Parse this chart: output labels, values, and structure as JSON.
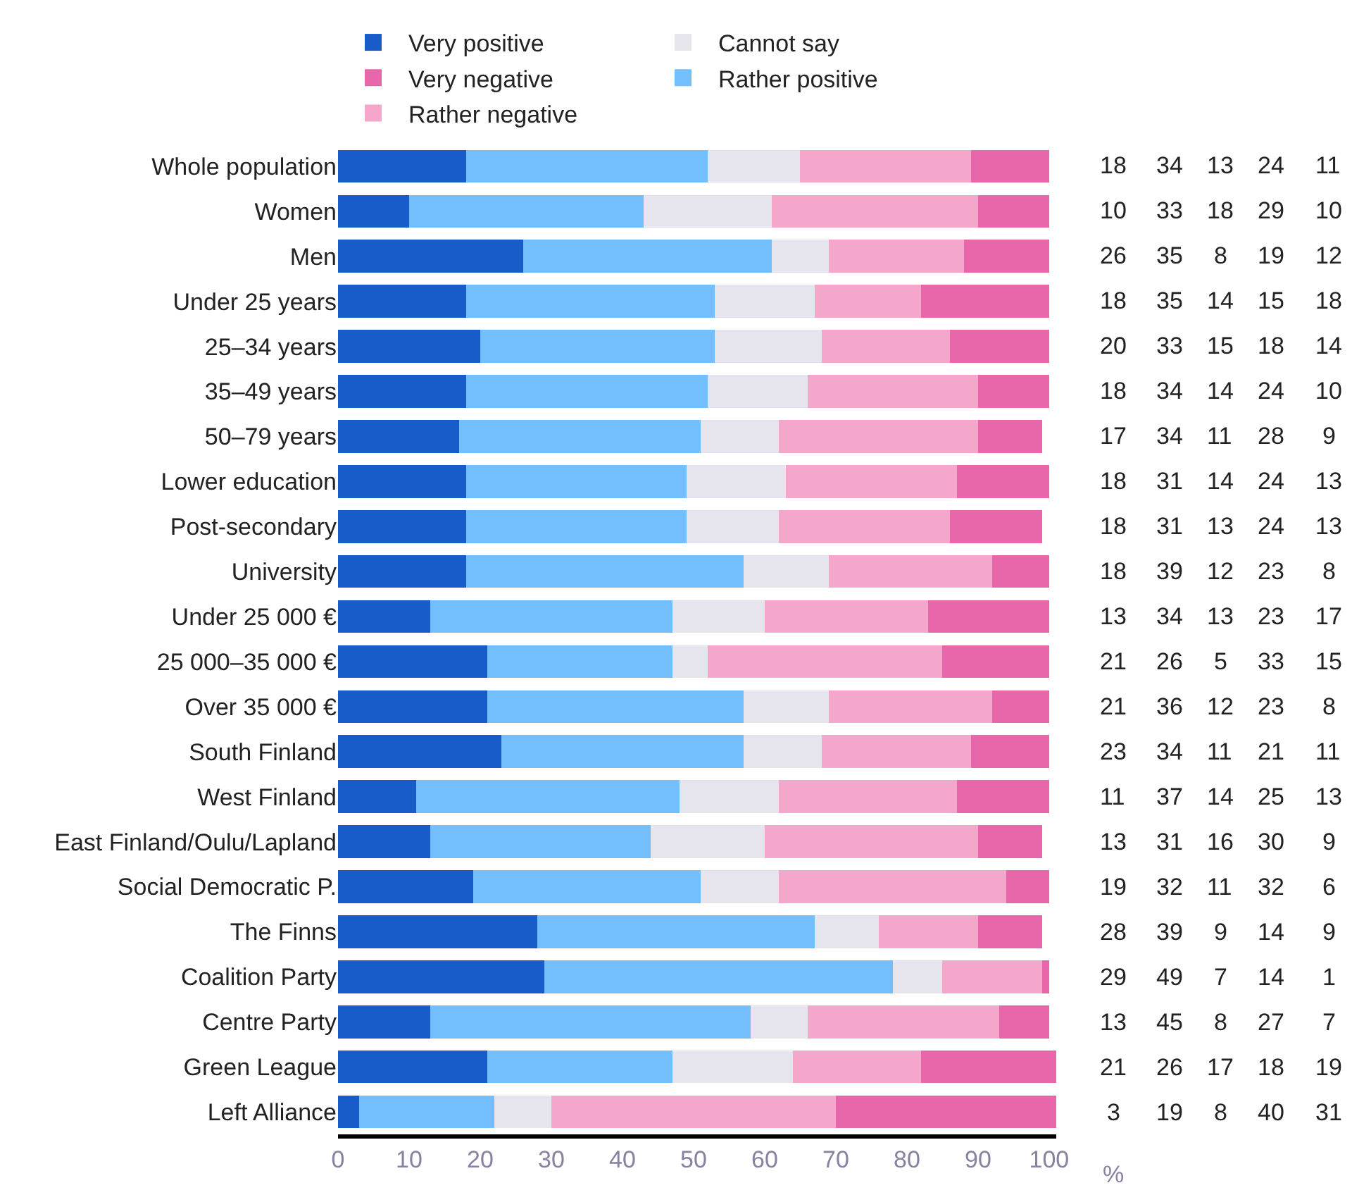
{
  "chart_data": {
    "type": "bar",
    "orientation": "horizontal",
    "stacked": true,
    "xlabel": "%",
    "legend": "top",
    "data_labels": true,
    "grid": false,
    "xlim": [
      0,
      101
    ],
    "xticks": [
      0,
      10,
      20,
      30,
      40,
      50,
      60,
      70,
      80,
      90,
      100
    ],
    "categories": [
      "Whole population",
      "Women",
      "Men",
      "Under 25 years",
      "25–34 years",
      "35–49 years",
      "50–79 years",
      "Lower education",
      "Post-secondary",
      "University",
      "Under 25 000 €",
      "25 000–35 000 €",
      "Over 35 000 €",
      "South Finland",
      "West Finland",
      "East Finland/Oulu/Lapland",
      "Social Democratic P.",
      "The Finns",
      "Coalition Party",
      "Centre Party",
      "Green League",
      "Left Alliance"
    ],
    "series": [
      {
        "name": "Very positive",
        "color": "#175cc8",
        "values": [
          18,
          10,
          26,
          18,
          20,
          18,
          17,
          18,
          18,
          18,
          13,
          21,
          21,
          23,
          11,
          13,
          19,
          28,
          29,
          13,
          21,
          3
        ]
      },
      {
        "name": "Rather positive",
        "color": "#73befc",
        "values": [
          34,
          33,
          35,
          35,
          33,
          34,
          34,
          31,
          31,
          39,
          34,
          26,
          36,
          34,
          37,
          31,
          32,
          39,
          49,
          45,
          26,
          19
        ]
      },
      {
        "name": "Cannot say",
        "color": "#e6e4ec",
        "values": [
          13,
          18,
          8,
          14,
          15,
          14,
          11,
          14,
          13,
          12,
          13,
          5,
          12,
          11,
          14,
          16,
          11,
          9,
          7,
          8,
          17,
          8
        ]
      },
      {
        "name": "Rather negative",
        "color": "#f4a7cb",
        "values": [
          24,
          29,
          19,
          15,
          18,
          24,
          28,
          24,
          24,
          23,
          23,
          33,
          23,
          21,
          25,
          30,
          32,
          14,
          14,
          27,
          18,
          40
        ]
      },
      {
        "name": "Very negative",
        "color": "#e866aa",
        "values": [
          11,
          10,
          12,
          18,
          14,
          10,
          9,
          13,
          13,
          8,
          17,
          15,
          8,
          11,
          13,
          9,
          6,
          9,
          1,
          7,
          19,
          31
        ]
      }
    ]
  }
}
